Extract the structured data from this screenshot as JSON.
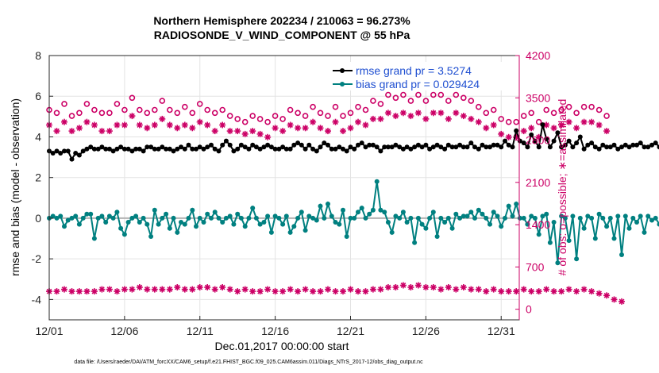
{
  "chart_data": {
    "type": "line",
    "title": "Northern Hemisphere 202234 / 210063 = 96.273%",
    "subtitle": "RADIOSONDE_V_WIND_COMPONENT @ 55 hPa",
    "xlabel": "Dec.01,2017 00:00:00 start",
    "ylabel_left": "rmse and bias (model - observation)",
    "ylabel_right": "# of obs: o=possible; ∗=assimilated",
    "footer": "data file: /Users/raeder/DAI/ATM_forcXX/CAM6_setup/f.e21.FHIST_BGC.f09_025.CAM6assim.011/Diags_NTrS_2017-12/obs_diag_output.nc",
    "x_tick_labels": [
      "12/01",
      "12/06",
      "12/11",
      "12/16",
      "12/21",
      "12/26",
      "12/31"
    ],
    "x_tick_values": [
      1,
      6,
      11,
      16,
      21,
      26,
      31
    ],
    "xlim": [
      1,
      32.2
    ],
    "ylim_left": [
      -5,
      8
    ],
    "y_left_ticks": [
      "-4",
      "-2",
      "0",
      "2",
      "4",
      "6",
      "8"
    ],
    "y_left_tick_values": [
      -4,
      -2,
      0,
      2,
      4,
      6,
      8
    ],
    "ylim_right": [
      -175,
      4200
    ],
    "y_right_ticks": [
      "0",
      "700",
      "1400",
      "2100",
      "2800",
      "3500",
      "4200"
    ],
    "y_right_tick_values": [
      0,
      700,
      1400,
      2100,
      2800,
      3500,
      4200
    ],
    "grid": true,
    "legend_position": "top-right",
    "colors": {
      "rmse": "#000000",
      "bias": "#008080",
      "obs": "#cc0066",
      "zero_line": "#b3b3b3",
      "legend_text": "#1f4fd1",
      "right_axis": "#cc0066"
    },
    "series": [
      {
        "name": "rmse grand pr = 3.5274",
        "axis": "left",
        "x_start": 1.0,
        "x_step": 0.25,
        "values": [
          3.3,
          3.2,
          3.3,
          3.2,
          3.3,
          3.3,
          2.9,
          3.2,
          3.1,
          3.3,
          3.4,
          3.5,
          3.4,
          3.4,
          3.5,
          3.4,
          3.4,
          3.3,
          3.4,
          3.5,
          3.4,
          3.4,
          3.3,
          3.4,
          3.4,
          3.3,
          3.5,
          3.5,
          3.4,
          3.4,
          3.5,
          3.4,
          3.4,
          3.3,
          3.4,
          3.5,
          3.4,
          3.6,
          3.4,
          3.4,
          3.5,
          3.4,
          3.5,
          3.6,
          3.4,
          3.3,
          3.6,
          3.8,
          3.6,
          3.3,
          3.4,
          3.6,
          3.5,
          3.4,
          3.6,
          3.5,
          3.4,
          3.5,
          3.6,
          3.5,
          3.4,
          3.4,
          3.5,
          3.4,
          3.4,
          3.6,
          3.7,
          3.6,
          3.4,
          3.6,
          3.4,
          3.3,
          3.5,
          3.7,
          3.6,
          3.4,
          3.4,
          3.5,
          3.4,
          3.3,
          3.5,
          3.4,
          3.6,
          3.7,
          3.5,
          3.6,
          3.6,
          3.5,
          3.3,
          3.5,
          3.5,
          3.5,
          3.6,
          3.5,
          3.4,
          3.5,
          3.4,
          3.5,
          3.6,
          3.5,
          3.6,
          3.4,
          3.5,
          3.6,
          3.5,
          3.4,
          3.6,
          3.5,
          3.5,
          3.6,
          3.5,
          3.5,
          3.7,
          3.5,
          3.4,
          3.6,
          3.5,
          3.5,
          3.6,
          3.6,
          3.5,
          3.8,
          3.6,
          3.5,
          4.3,
          3.8,
          3.7,
          3.5,
          4.1,
          3.8,
          3.5,
          4.6,
          3.9,
          3.5,
          3.8,
          4.2,
          3.5,
          3.6,
          3.8,
          3.5,
          3.7,
          4.0,
          3.4,
          3.6,
          3.7,
          3.5,
          3.4,
          3.6,
          3.5,
          3.5,
          3.6,
          3.4,
          3.5,
          3.6,
          3.5,
          3.6,
          3.6,
          3.7,
          3.5,
          3.5,
          3.6,
          3.7,
          3.5,
          3.4,
          3.6,
          3.6,
          3.5,
          3.5,
          3.6,
          3.8,
          3.5,
          4.2,
          3.8,
          3.6,
          3.7,
          3.9,
          3.6,
          4.1,
          3.7,
          3.4,
          4.4,
          3.7,
          3.6,
          4.3,
          3.9,
          3.6,
          3.8
        ]
      },
      {
        "name": "bias grand pr = 0.029424",
        "axis": "left",
        "x_start": 1.0,
        "x_step": 0.25,
        "values": [
          0.0,
          0.1,
          0.0,
          0.1,
          -0.4,
          -0.1,
          0.0,
          0.1,
          -0.3,
          0.0,
          0.2,
          0.2,
          -1.0,
          0.0,
          0.1,
          -0.2,
          0.1,
          0.0,
          0.3,
          -0.5,
          -0.8,
          -0.2,
          0.0,
          0.1,
          -0.2,
          0.0,
          -0.3,
          -0.9,
          0.4,
          -0.3,
          0.0,
          0.2,
          -0.5,
          0.0,
          -0.7,
          -0.2,
          -0.3,
          0.0,
          0.4,
          -0.4,
          0.0,
          -0.2,
          0.2,
          0.0,
          0.3,
          0.0,
          -0.2,
          0.0,
          0.1,
          -0.3,
          0.2,
          0.0,
          -0.4,
          0.0,
          0.5,
          0.0,
          -0.3,
          -0.2,
          0.1,
          -0.7,
          0.1,
          0.0,
          -0.3,
          0.1,
          -0.7,
          -0.4,
          0.0,
          0.3,
          -0.6,
          0.1,
          0.0,
          -0.1,
          0.6,
          0.0,
          0.7,
          0.1,
          -0.2,
          -0.3,
          0.4,
          -0.9,
          0.0,
          0.0,
          0.3,
          0.5,
          0.0,
          0.2,
          0.4,
          1.8,
          0.4,
          0.3,
          -0.2,
          -0.7,
          0.1,
          0.0,
          0.3,
          -0.2,
          0.0,
          -1.2,
          0.0,
          -0.3,
          -0.5,
          0.0,
          0.3,
          -0.9,
          0.0,
          -0.2,
          0.0,
          -0.5,
          0.2,
          0.0,
          0.1,
          0.1,
          0.3,
          0.0,
          0.4,
          0.2,
          0.0,
          -0.3,
          0.3,
          0.1,
          -0.4,
          0.0,
          0.6,
          0.1,
          0.7,
          0.0,
          0.0,
          -0.3,
          0.1,
          0.0,
          -0.8,
          0.1,
          0.2,
          -1.2,
          -0.2,
          -2.2,
          0.1,
          0.0,
          -1.1,
          0.1,
          -2.0,
          0.0,
          -0.5,
          0.1,
          0.0,
          -1.0,
          0.2,
          0.0,
          -0.4,
          0.0,
          -1.0,
          0.1,
          -1.8,
          0.1,
          -0.5,
          0.0,
          -0.2,
          0.1,
          -0.7,
          0.1,
          -0.1,
          0.0,
          -0.3,
          0.0,
          -0.4,
          -0.2,
          0.1,
          0.0,
          -0.2,
          0.0,
          0.4,
          0.1,
          0.7,
          0.2,
          0.1,
          0.4,
          0.0,
          -0.4,
          0.5,
          0.2,
          1.4,
          0.8,
          0.3,
          0.4,
          0.2,
          0.8,
          0.9
        ]
      },
      {
        "name": "possible",
        "axis": "right",
        "marker": "circle",
        "x_start": 1.0,
        "x_step": 0.5,
        "values": [
          3300,
          3250,
          3400,
          3200,
          3250,
          3400,
          3300,
          3250,
          3250,
          3400,
          3300,
          3500,
          3300,
          3250,
          3300,
          3450,
          3300,
          3250,
          3350,
          3250,
          3400,
          3300,
          3250,
          3300,
          3200,
          3150,
          3100,
          3200,
          3150,
          3100,
          3200,
          3150,
          3300,
          3250,
          3200,
          3350,
          3250,
          3200,
          3350,
          3200,
          3250,
          3350,
          3300,
          3450,
          3400,
          3550,
          3500,
          3550,
          3450,
          3550,
          3450,
          3550,
          3550,
          3450,
          3550,
          3500,
          3450,
          3350,
          3250,
          3300,
          3150,
          3100,
          3100,
          3200,
          3250,
          3100,
          3300,
          3250,
          3300,
          3350,
          3250,
          3350,
          3350,
          3300,
          3200
        ]
      },
      {
        "name": "assimilated",
        "axis": "right",
        "marker": "asterisk",
        "x_start": 1.0,
        "x_step": 0.5,
        "values": [
          3050,
          2950,
          3100,
          2950,
          3000,
          3100,
          3050,
          2950,
          2950,
          3050,
          3050,
          3200,
          3050,
          3000,
          3050,
          3150,
          3050,
          3000,
          3050,
          3000,
          3100,
          3050,
          2950,
          3050,
          2950,
          2950,
          2900,
          2950,
          2900,
          2850,
          3000,
          2950,
          3050,
          3000,
          3000,
          3100,
          3000,
          2950,
          3100,
          2950,
          3000,
          3100,
          3050,
          3150,
          3150,
          3250,
          3200,
          3250,
          3200,
          3250,
          3150,
          3250,
          3250,
          3150,
          3250,
          3200,
          3150,
          3100,
          3000,
          3050,
          2900,
          2850,
          2850,
          2950,
          3000,
          2850,
          3050,
          3000,
          3050,
          3100,
          3000,
          3100,
          3100,
          3050,
          2950
        ]
      },
      {
        "name": "assimilated (lower)",
        "axis": "left",
        "marker": "asterisk",
        "x_start": 1.0,
        "x_step": 0.5,
        "values": [
          -3.6,
          -3.6,
          -3.5,
          -3.6,
          -3.6,
          -3.6,
          -3.6,
          -3.5,
          -3.5,
          -3.6,
          -3.5,
          -3.5,
          -3.4,
          -3.5,
          -3.5,
          -3.5,
          -3.5,
          -3.4,
          -3.5,
          -3.5,
          -3.4,
          -3.4,
          -3.5,
          -3.4,
          -3.5,
          -3.6,
          -3.5,
          -3.6,
          -3.6,
          -3.5,
          -3.6,
          -3.6,
          -3.5,
          -3.6,
          -3.5,
          -3.6,
          -3.6,
          -3.5,
          -3.6,
          -3.6,
          -3.5,
          -3.6,
          -3.6,
          -3.5,
          -3.5,
          -3.4,
          -3.4,
          -3.3,
          -3.4,
          -3.3,
          -3.4,
          -3.4,
          -3.5,
          -3.4,
          -3.5,
          -3.4,
          -3.5,
          -3.5,
          -3.6,
          -3.5,
          -3.6,
          -3.6,
          -3.6,
          -3.5,
          -3.6,
          -3.6,
          -3.5,
          -3.6,
          -3.6,
          -3.5,
          -3.6,
          -3.5,
          -3.6,
          -3.7,
          -3.8,
          -4.0,
          -4.1
        ]
      }
    ]
  }
}
